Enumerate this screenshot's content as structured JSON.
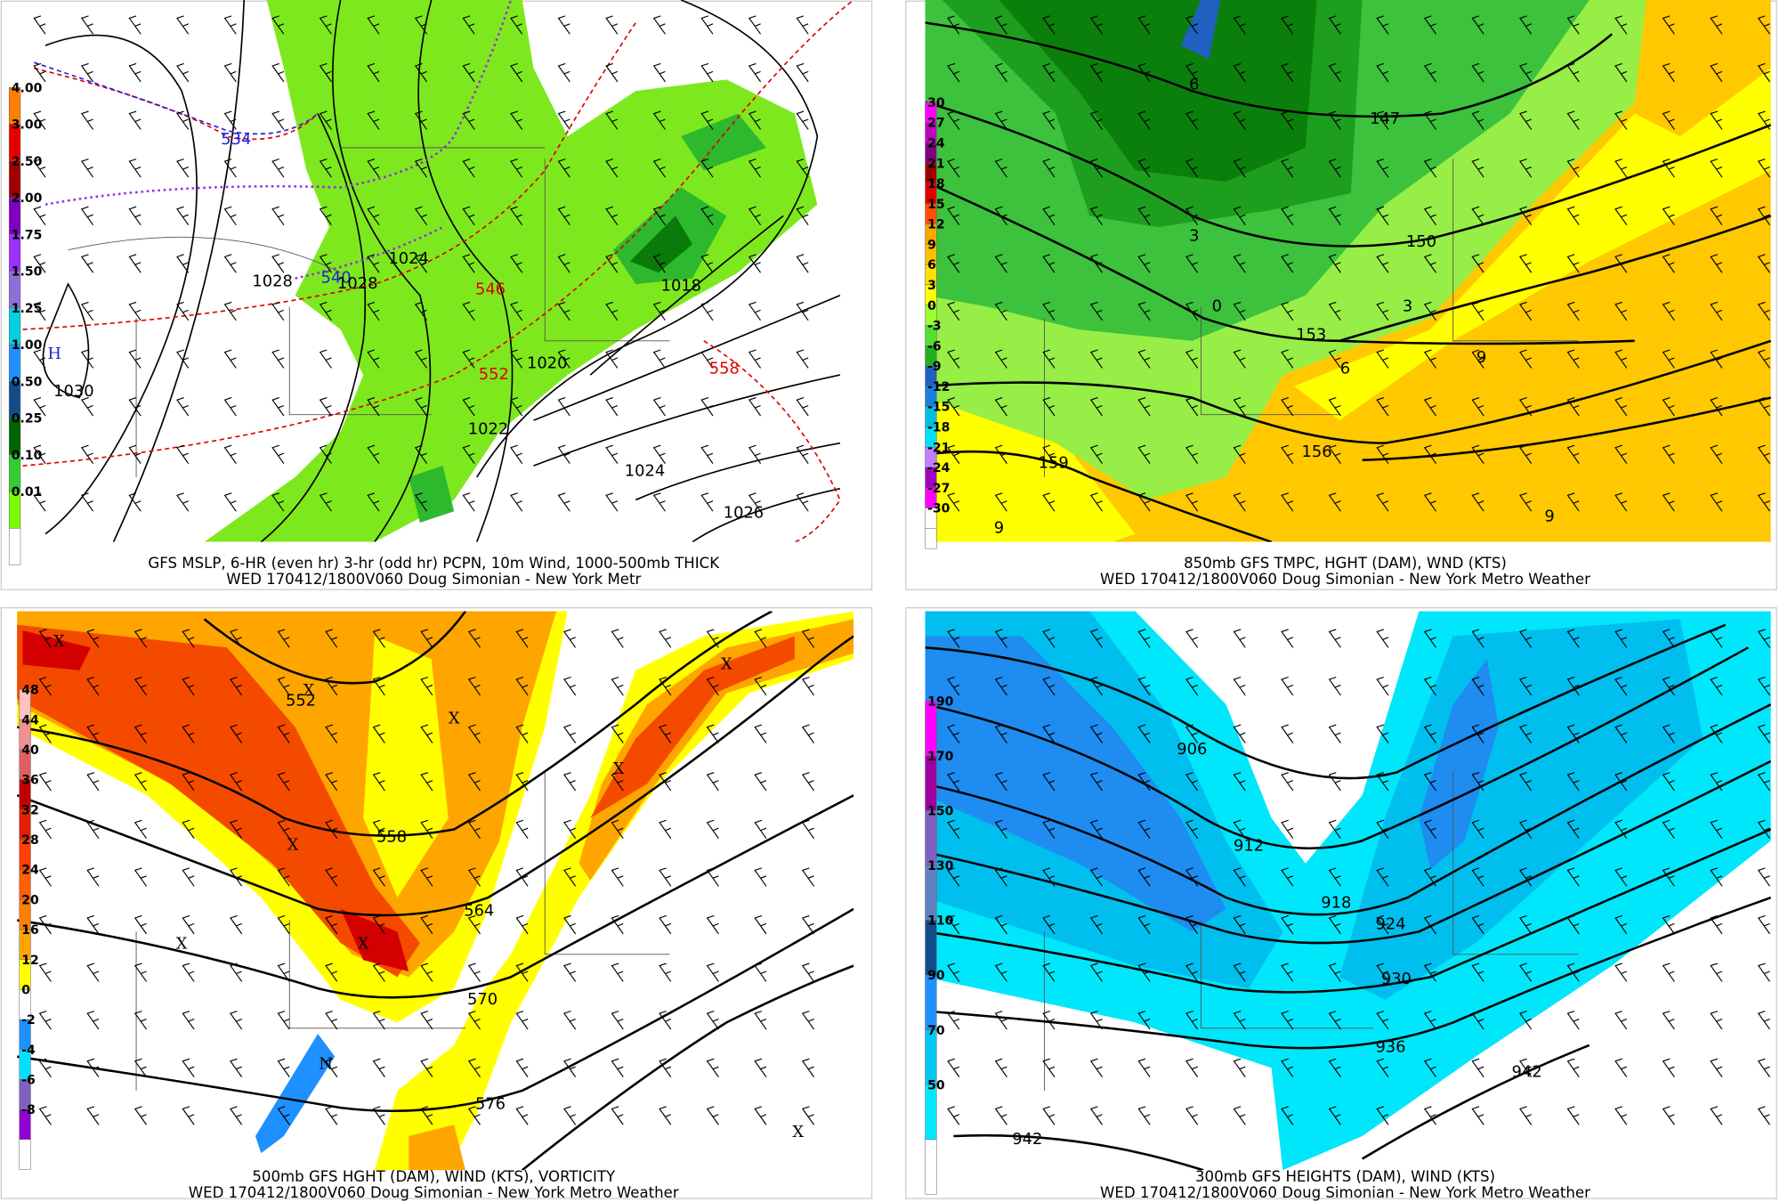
{
  "panels": [
    {
      "caption": [
        "GFS MSLP, 6-HR (even hr) 3-hr (odd hr) PCPN, 10m Wind, 1000-500mb THICK",
        "WED 170412/1800V060 Doug Simonian - New York Metr"
      ],
      "legend": [
        "4.00",
        "3.00",
        "2.50",
        "2.00",
        "1.75",
        "1.50",
        "1.25",
        "1.00",
        "0.50",
        "0.25",
        "0.10",
        "0.01"
      ],
      "labels": [
        "534",
        "540",
        "546",
        "552",
        "558",
        "1028",
        "1028",
        "1024",
        "1018",
        "1020",
        "1022",
        "1024",
        "1026",
        "1030",
        "H"
      ]
    },
    {
      "caption": [
        "850mb GFS TMPC, HGHT (DAM), WND (KTS)",
        "WED 170412/1800V060 Doug Simonian - New York Metro Weather"
      ],
      "legend": [
        "30",
        "27",
        "24",
        "21",
        "18",
        "15",
        "12",
        "9",
        "6",
        "3",
        "0",
        "-3",
        "-6",
        "-9",
        "-12",
        "-15",
        "-18",
        "-21",
        "-24",
        "-27",
        "-30"
      ],
      "labels": [
        "147",
        "150",
        "153",
        "156",
        "159",
        "6",
        "3",
        "0",
        "3",
        "6",
        "9",
        "9",
        "9"
      ]
    },
    {
      "caption": [
        "500mb GFS HGHT (DAM), WIND (KTS), VORTICITY",
        "WED 170412/1800V060 Doug Simonian - New York Metro Weather"
      ],
      "legend": [
        "48",
        "44",
        "40",
        "36",
        "32",
        "28",
        "24",
        "20",
        "16",
        "12",
        "0",
        "-2",
        "-4",
        "-6",
        "-8"
      ],
      "labels": [
        "552",
        "558",
        "564",
        "570",
        "576",
        "X",
        "X",
        "X",
        "X",
        "X",
        "X",
        "X",
        "X",
        "X",
        "N"
      ]
    },
    {
      "caption": [
        "300mb GFS HEIGHTS (DAM), WIND (KTS)",
        "WED 170412/1800V060 Doug Simonian - New York Metro Weather"
      ],
      "legend": [
        "190",
        "170",
        "150",
        "130",
        "110",
        "90",
        "70",
        "50"
      ],
      "labels": [
        "906",
        "912",
        "918",
        "924",
        "930",
        "936",
        "942",
        "942"
      ]
    }
  ]
}
